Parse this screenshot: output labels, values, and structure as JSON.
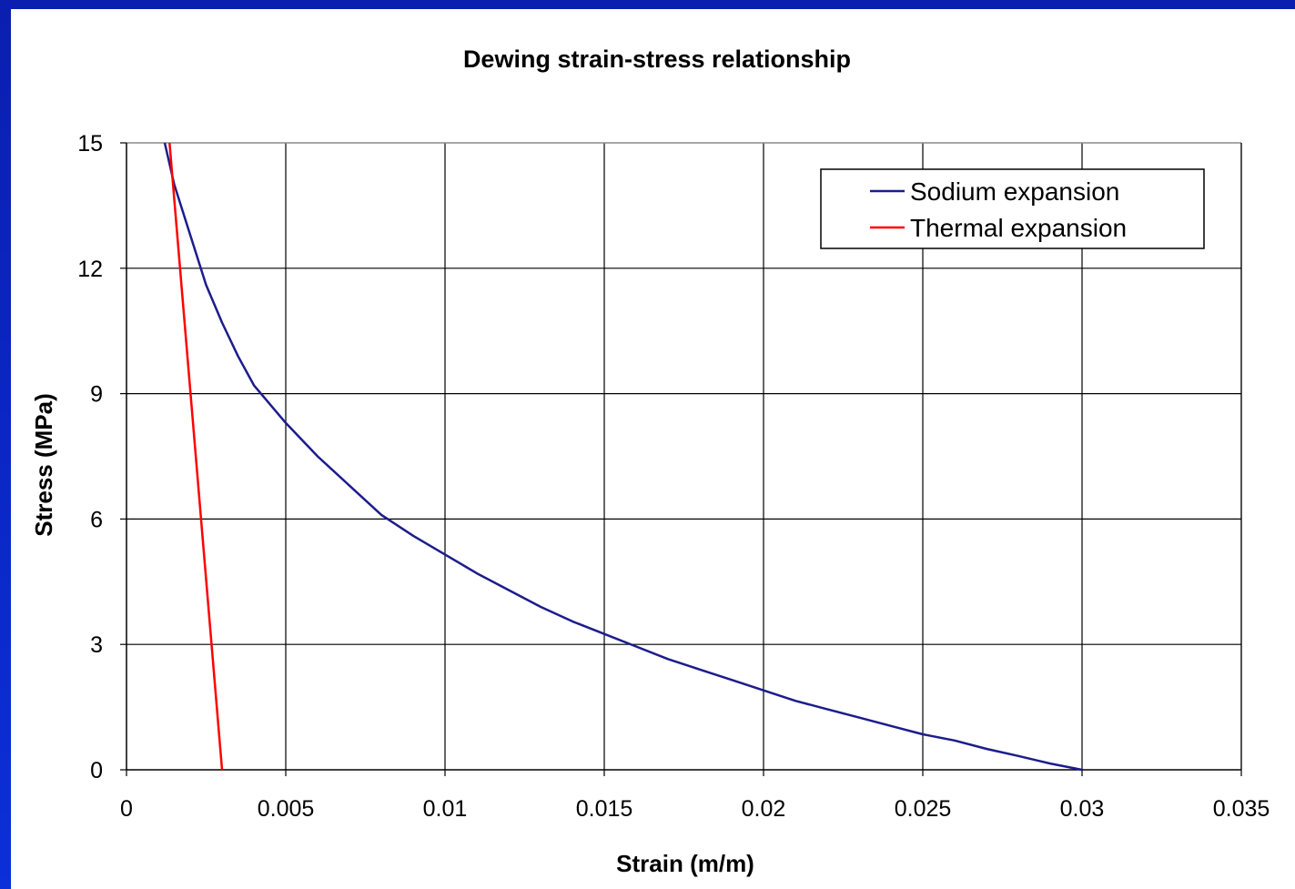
{
  "chart_data": {
    "type": "line",
    "title": "Dewing strain-stress relationship",
    "xlabel": "Strain (m/m)",
    "ylabel": "Stress (MPa)",
    "xlim": [
      0,
      0.035
    ],
    "ylim": [
      0,
      15
    ],
    "x_ticks": [
      "0",
      "0.005",
      "0.01",
      "0.015",
      "0.02",
      "0.025",
      "0.03",
      "0.035"
    ],
    "y_ticks": [
      "0",
      "3",
      "6",
      "9",
      "12",
      "15"
    ],
    "grid": true,
    "legend_position": "top-right",
    "series": [
      {
        "name": "Sodium expansion",
        "color": "#1c1c8c",
        "x": [
          0.0012,
          0.0015,
          0.002,
          0.0025,
          0.003,
          0.0035,
          0.004,
          0.005,
          0.006,
          0.007,
          0.008,
          0.009,
          0.01,
          0.011,
          0.012,
          0.013,
          0.014,
          0.015,
          0.016,
          0.017,
          0.018,
          0.019,
          0.02,
          0.021,
          0.022,
          0.023,
          0.024,
          0.025,
          0.026,
          0.027,
          0.028,
          0.029,
          0.03
        ],
        "y": [
          15.0,
          14.0,
          12.8,
          11.6,
          10.7,
          9.9,
          9.2,
          8.3,
          7.5,
          6.8,
          6.1,
          5.6,
          5.15,
          4.7,
          4.3,
          3.9,
          3.55,
          3.25,
          2.95,
          2.65,
          2.4,
          2.15,
          1.9,
          1.65,
          1.45,
          1.25,
          1.05,
          0.85,
          0.7,
          0.5,
          0.33,
          0.15,
          0.0
        ]
      },
      {
        "name": "Thermal expansion",
        "color": "#ff0000",
        "x": [
          0.00135,
          0.003
        ],
        "y": [
          15.0,
          0.0
        ]
      }
    ]
  }
}
